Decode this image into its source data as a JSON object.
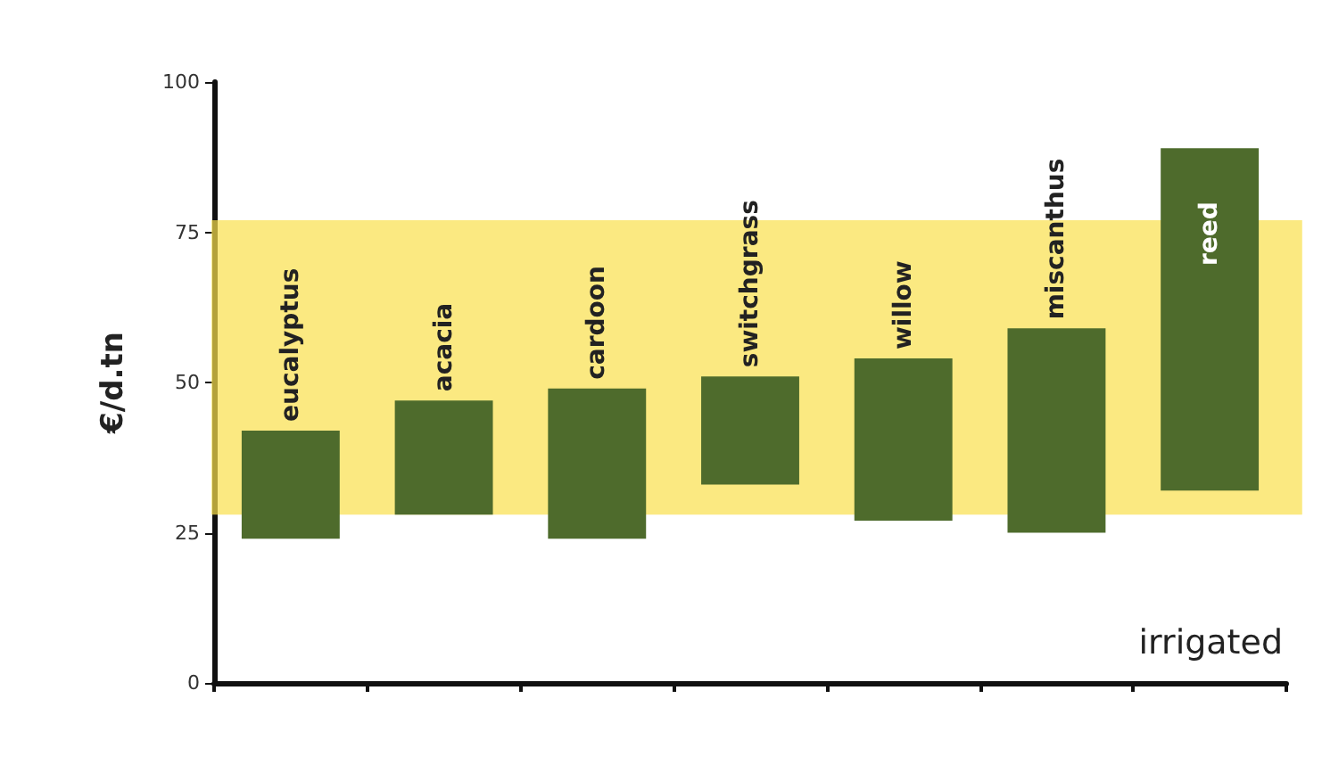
{
  "chart_data": {
    "type": "bar",
    "ylabel": "€/d.tn",
    "categories": [
      "eucalyptus",
      "acacia",
      "cardoon",
      "switchgrass",
      "willow",
      "miscanthus",
      "reed"
    ],
    "base": [
      24,
      28,
      24,
      33,
      27,
      25,
      32
    ],
    "values": [
      18,
      19,
      25,
      18,
      27,
      34,
      57
    ],
    "color": "#4e6b2c",
    "ylim": [
      0,
      100
    ],
    "yticks": [
      0,
      25,
      50,
      75,
      100
    ],
    "grid": false,
    "bands": [
      {
        "axis": "y",
        "from": 28,
        "to": 77,
        "color": "#f9e04b"
      }
    ],
    "annotations": [
      "irrigated"
    ]
  }
}
